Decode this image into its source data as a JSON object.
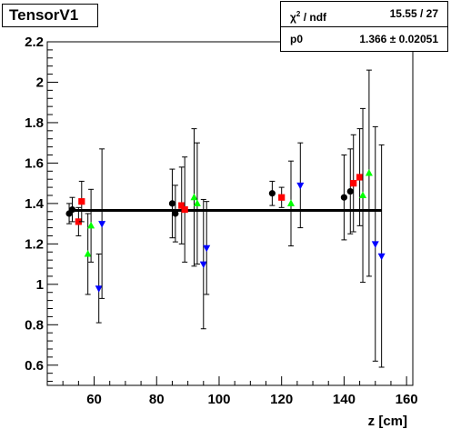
{
  "title": "TensorV1",
  "stats": {
    "rows": [
      {
        "key_html": "χ<sup style='font-size:8px'>2</sup> / ndf",
        "key": "χ² / ndf",
        "value": "15.55 / 27"
      },
      {
        "key": "p0",
        "value": "1.366 ± 0.02051"
      }
    ]
  },
  "chart_data": {
    "type": "scatter",
    "title": "TensorV1",
    "xlabel": "z [cm]",
    "ylabel": "",
    "xlim": [
      45,
      162
    ],
    "ylim": [
      0.5,
      2.2
    ],
    "x_ticks": [
      60,
      80,
      100,
      120,
      140,
      160
    ],
    "y_ticks": [
      0.6,
      0.8,
      1,
      1.2,
      1.4,
      1.6,
      1.8,
      2,
      2.2
    ],
    "y_tick_labels": [
      "0.6",
      "0.8",
      "1",
      "1.2",
      "1.4",
      "1.6",
      "1.8",
      "2",
      "2.2"
    ],
    "fit": {
      "p0": 1.366,
      "x_range": [
        52,
        152
      ],
      "color": "#000000"
    },
    "series": [
      {
        "marker": "circle",
        "color": "#000000",
        "points": [
          {
            "x": 52.0,
            "y": 1.35,
            "err": 0.05
          },
          {
            "x": 53.0,
            "y": 1.37,
            "err": 0.06
          },
          {
            "x": 85.0,
            "y": 1.4,
            "err": 0.17
          },
          {
            "x": 86.0,
            "y": 1.35,
            "err": 0.14
          },
          {
            "x": 117.0,
            "y": 1.45,
            "err": 0.06
          },
          {
            "x": 140.0,
            "y": 1.43,
            "err": 0.21
          },
          {
            "x": 142.0,
            "y": 1.46,
            "err": 0.21
          }
        ]
      },
      {
        "marker": "square",
        "color": "#ff0000",
        "points": [
          {
            "x": 55.0,
            "y": 1.31,
            "err": 0.07
          },
          {
            "x": 56.0,
            "y": 1.41,
            "err": 0.1
          },
          {
            "x": 88.0,
            "y": 1.39,
            "err": 0.19
          },
          {
            "x": 89.0,
            "y": 1.37,
            "err": 0.26
          },
          {
            "x": 120.0,
            "y": 1.43,
            "err": 0.05
          },
          {
            "x": 143.0,
            "y": 1.5,
            "err": 0.24
          },
          {
            "x": 145.0,
            "y": 1.53,
            "err": 0.24
          }
        ]
      },
      {
        "marker": "triangle-up",
        "color": "#00ff00",
        "points": [
          {
            "x": 58.0,
            "y": 1.15,
            "err": 0.2
          },
          {
            "x": 59.0,
            "y": 1.29,
            "err": 0.18
          },
          {
            "x": 92.0,
            "y": 1.43,
            "err": 0.34
          },
          {
            "x": 93.0,
            "y": 1.4,
            "err": 0.3
          },
          {
            "x": 123.0,
            "y": 1.4,
            "err": 0.21
          },
          {
            "x": 146.0,
            "y": 1.44,
            "err": 0.43
          },
          {
            "x": 148.0,
            "y": 1.55,
            "err": 0.51
          }
        ]
      },
      {
        "marker": "triangle-down",
        "color": "#0000ff",
        "points": [
          {
            "x": 61.5,
            "y": 0.98,
            "err": 0.17
          },
          {
            "x": 62.5,
            "y": 1.3,
            "err": 0.37
          },
          {
            "x": 95.0,
            "y": 1.1,
            "err": 0.32
          },
          {
            "x": 96.0,
            "y": 1.18,
            "err": 0.23
          },
          {
            "x": 126.0,
            "y": 1.49,
            "err": 0.21
          },
          {
            "x": 150.0,
            "y": 1.2,
            "err": 0.58
          },
          {
            "x": 152.0,
            "y": 1.14,
            "err": 0.55
          }
        ]
      }
    ]
  }
}
